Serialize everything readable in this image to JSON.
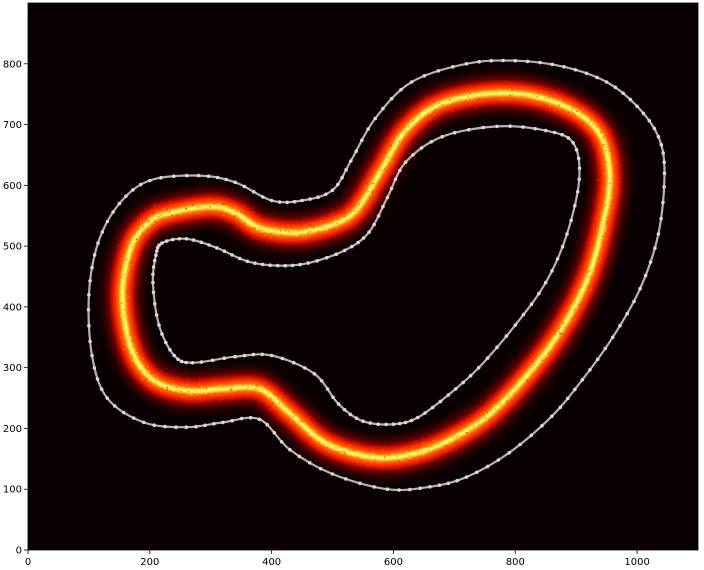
{
  "chart_data": {
    "type": "heatmap",
    "title": "",
    "xlabel": "",
    "ylabel": "",
    "xlim": [
      0,
      1100
    ],
    "ylim": [
      0,
      900
    ],
    "x_ticks": [
      0,
      200,
      400,
      600,
      800,
      1000
    ],
    "y_ticks": [
      0,
      100,
      200,
      300,
      400,
      500,
      600,
      700,
      800
    ],
    "grid": false,
    "background_color": "#0a0000",
    "colormap": [
      "#0a0000",
      "#8b0000",
      "#ff1a00",
      "#ff8c00",
      "#ffff66"
    ],
    "boundary_color": "#c8c8c8",
    "centerline": [
      [
        235,
        555
      ],
      [
        300,
        565
      ],
      [
        340,
        555
      ],
      [
        380,
        530
      ],
      [
        440,
        522
      ],
      [
        500,
        535
      ],
      [
        540,
        560
      ],
      [
        580,
        625
      ],
      [
        620,
        690
      ],
      [
        680,
        735
      ],
      [
        780,
        752
      ],
      [
        870,
        735
      ],
      [
        935,
        690
      ],
      [
        955,
        620
      ],
      [
        945,
        540
      ],
      [
        920,
        450
      ],
      [
        880,
        370
      ],
      [
        830,
        300
      ],
      [
        760,
        225
      ],
      [
        700,
        185
      ],
      [
        640,
        160
      ],
      [
        570,
        152
      ],
      [
        490,
        175
      ],
      [
        430,
        225
      ],
      [
        380,
        265
      ],
      [
        320,
        265
      ],
      [
        260,
        262
      ],
      [
        205,
        280
      ],
      [
        170,
        330
      ],
      [
        155,
        420
      ],
      [
        170,
        500
      ],
      [
        200,
        540
      ],
      [
        235,
        555
      ]
    ],
    "outer_boundary": [
      [
        200,
        608
      ],
      [
        280,
        616
      ],
      [
        340,
        605
      ],
      [
        400,
        575
      ],
      [
        450,
        575
      ],
      [
        500,
        592
      ],
      [
        530,
        640
      ],
      [
        570,
        710
      ],
      [
        630,
        770
      ],
      [
        720,
        800
      ],
      [
        800,
        805
      ],
      [
        880,
        795
      ],
      [
        950,
        770
      ],
      [
        1000,
        730
      ],
      [
        1035,
        680
      ],
      [
        1045,
        620
      ],
      [
        1035,
        520
      ],
      [
        1005,
        430
      ],
      [
        960,
        350
      ],
      [
        910,
        280
      ],
      [
        860,
        220
      ],
      [
        790,
        160
      ],
      [
        720,
        120
      ],
      [
        660,
        104
      ],
      [
        590,
        100
      ],
      [
        500,
        125
      ],
      [
        430,
        165
      ],
      [
        380,
        215
      ],
      [
        320,
        210
      ],
      [
        260,
        202
      ],
      [
        190,
        210
      ],
      [
        130,
        250
      ],
      [
        105,
        320
      ],
      [
        100,
        420
      ],
      [
        115,
        505
      ],
      [
        150,
        570
      ],
      [
        200,
        608
      ]
    ],
    "inner_boundary": [
      [
        220,
        505
      ],
      [
        260,
        512
      ],
      [
        310,
        497
      ],
      [
        360,
        475
      ],
      [
        410,
        468
      ],
      [
        460,
        472
      ],
      [
        520,
        493
      ],
      [
        560,
        523
      ],
      [
        590,
        580
      ],
      [
        620,
        638
      ],
      [
        680,
        680
      ],
      [
        770,
        697
      ],
      [
        850,
        690
      ],
      [
        895,
        670
      ],
      [
        905,
        610
      ],
      [
        885,
        520
      ],
      [
        850,
        440
      ],
      [
        800,
        370
      ],
      [
        740,
        300
      ],
      [
        690,
        255
      ],
      [
        640,
        218
      ],
      [
        600,
        207
      ],
      [
        550,
        212
      ],
      [
        510,
        240
      ],
      [
        470,
        290
      ],
      [
        400,
        320
      ],
      [
        340,
        318
      ],
      [
        270,
        308
      ],
      [
        240,
        320
      ],
      [
        215,
        370
      ],
      [
        205,
        440
      ],
      [
        210,
        485
      ],
      [
        220,
        505
      ]
    ]
  }
}
